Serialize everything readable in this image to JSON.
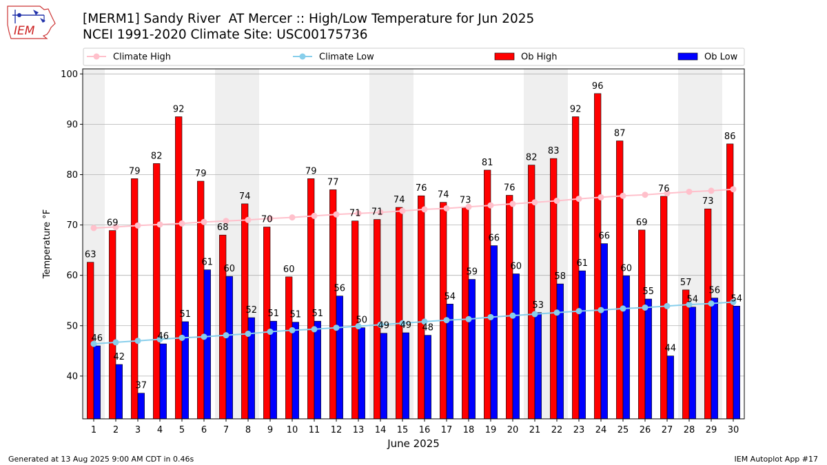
{
  "header": {
    "logo_text": "IEM",
    "title_line1": "[MERM1] Sandy River  AT Mercer :: High/Low Temperature for Jun 2025",
    "title_line2": "NCEI 1991-2020 Climate Site: USC00175736"
  },
  "footer": {
    "generated": "Generated at 13 Aug 2025 9:00 AM CDT in 0.46s",
    "app": "IEM Autoplot App #17"
  },
  "colors": {
    "ob_high": "#ff0000",
    "ob_low": "#0000ff",
    "climate_high": "#ffc0cb",
    "climate_low": "#87ceeb",
    "weekend_shade": "#efefef",
    "grid": "#b0b0b0"
  },
  "chart_data": {
    "type": "bar",
    "xlabel": "June 2025",
    "ylabel": "Temperature °F",
    "ylim": [
      31.5,
      101
    ],
    "yticks": [
      40,
      50,
      60,
      70,
      80,
      90,
      100
    ],
    "grid": "horizontal",
    "legend_position": "top",
    "categories": [
      1,
      2,
      3,
      4,
      5,
      6,
      7,
      8,
      9,
      10,
      11,
      12,
      13,
      14,
      15,
      16,
      17,
      18,
      19,
      20,
      21,
      22,
      23,
      24,
      25,
      26,
      27,
      28,
      29,
      30
    ],
    "shaded_weekend_days": [
      1,
      7,
      8,
      14,
      15,
      21,
      22,
      28,
      29
    ],
    "series": [
      {
        "name": "Climate High",
        "kind": "line",
        "values": [
          69.4,
          69.6,
          69.9,
          70.1,
          70.3,
          70.6,
          70.8,
          71.0,
          71.3,
          71.5,
          71.8,
          72.1,
          72.3,
          72.5,
          72.8,
          73.1,
          73.3,
          73.6,
          73.9,
          74.2,
          74.5,
          74.8,
          75.2,
          75.5,
          75.8,
          76.0,
          76.3,
          76.6,
          76.8,
          77.1
        ]
      },
      {
        "name": "Climate Low",
        "kind": "line",
        "values": [
          46.4,
          46.7,
          47.0,
          47.3,
          47.6,
          47.8,
          48.1,
          48.4,
          48.8,
          49.1,
          49.3,
          49.6,
          49.9,
          50.2,
          50.5,
          50.8,
          51.1,
          51.3,
          51.7,
          52.0,
          52.3,
          52.6,
          52.9,
          53.1,
          53.4,
          53.6,
          53.9,
          54.2,
          54.4,
          54.7
        ]
      },
      {
        "name": "Ob High",
        "kind": "bar",
        "values": [
          63,
          69,
          79,
          82,
          92,
          79,
          68,
          74,
          70,
          60,
          79,
          77,
          71,
          71,
          74,
          76,
          74,
          73,
          81,
          76,
          82,
          83,
          92,
          96,
          87,
          69,
          76,
          57,
          73,
          86
        ],
        "bar_values": [
          62.6,
          68.9,
          79.2,
          82.2,
          91.5,
          78.7,
          68.0,
          74.2,
          69.6,
          59.7,
          79.2,
          77.0,
          70.8,
          71.1,
          73.5,
          75.8,
          74.5,
          73.4,
          80.9,
          75.9,
          81.9,
          83.2,
          91.5,
          96.1,
          86.7,
          69.0,
          75.7,
          57.1,
          73.2,
          86.1
        ]
      },
      {
        "name": "Ob Low",
        "kind": "bar",
        "values": [
          46,
          42,
          37,
          46,
          51,
          61,
          60,
          52,
          51,
          51,
          51,
          56,
          50,
          49,
          49,
          48,
          54,
          59,
          66,
          60,
          53,
          58,
          61,
          66,
          60,
          55,
          44,
          54,
          56,
          54
        ],
        "bar_values": [
          46.0,
          42.3,
          36.6,
          46.4,
          50.8,
          61.1,
          59.8,
          51.6,
          50.9,
          50.7,
          50.9,
          55.9,
          49.6,
          48.5,
          48.6,
          48.1,
          54.3,
          59.2,
          65.9,
          60.3,
          52.6,
          58.3,
          60.9,
          66.3,
          59.9,
          55.3,
          44.0,
          53.7,
          55.5,
          53.9
        ]
      }
    ]
  }
}
